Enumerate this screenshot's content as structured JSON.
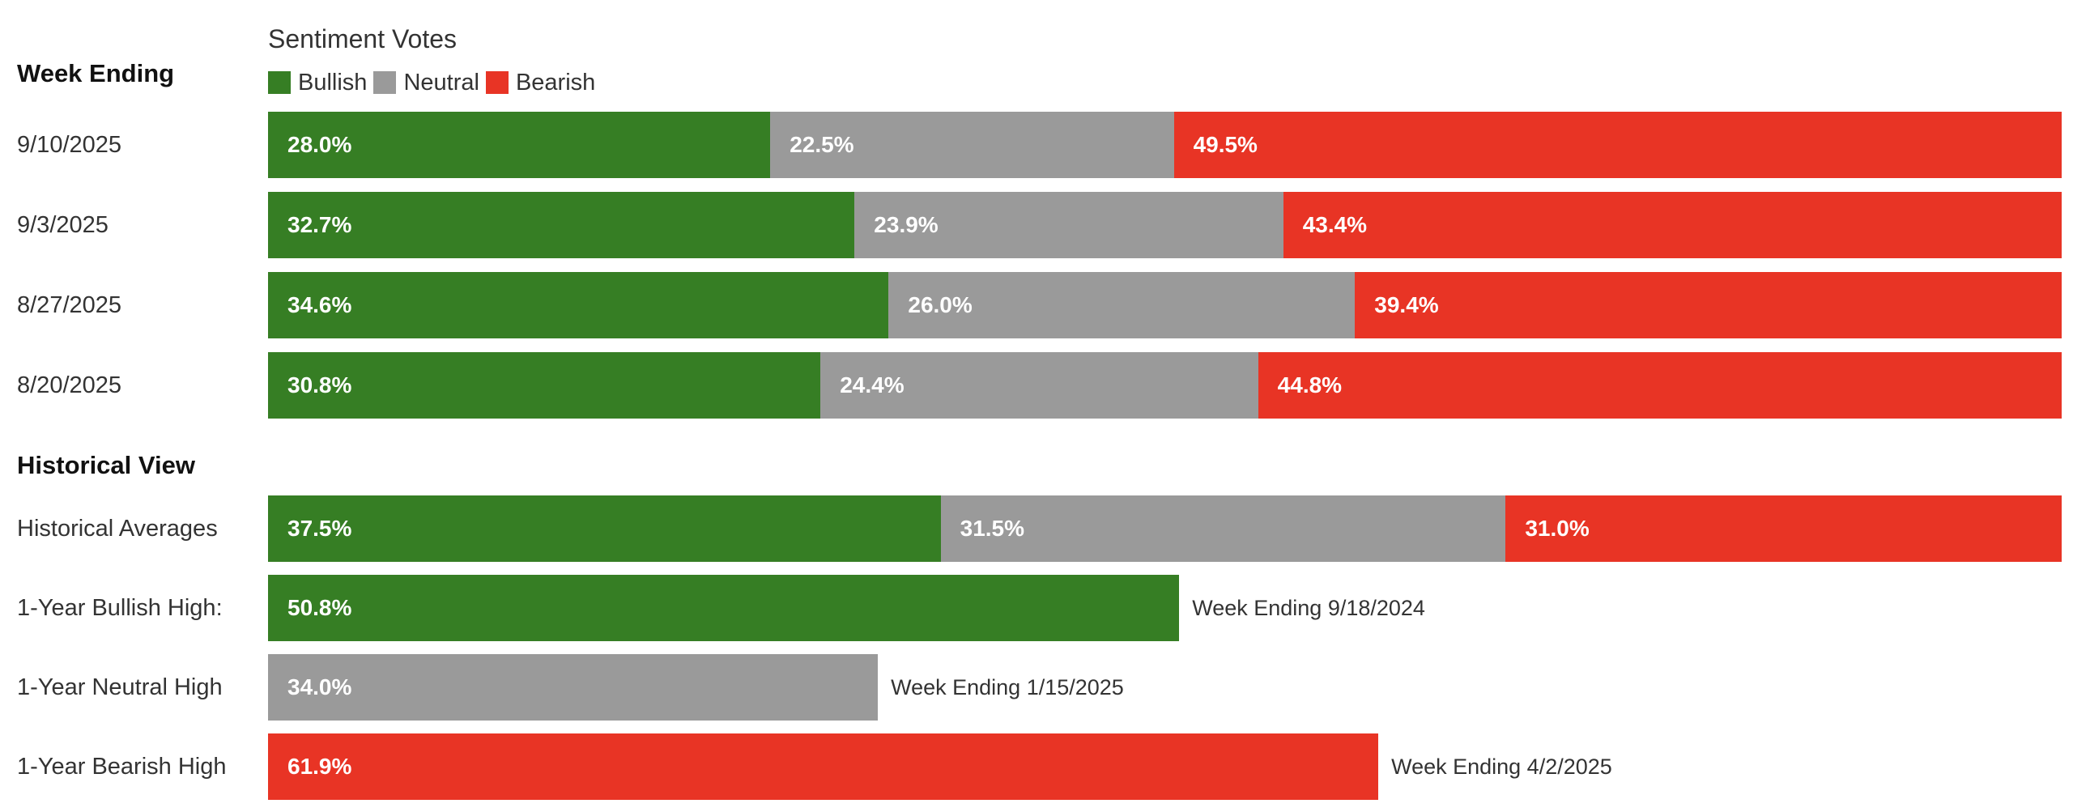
{
  "colors": {
    "bullish": "#367e24",
    "neutral": "#9a9a9a",
    "bearish": "#e83425"
  },
  "legend": {
    "title": "Sentiment Votes",
    "items": [
      "Bullish",
      "Neutral",
      "Bearish"
    ]
  },
  "week_section": {
    "heading": "Week Ending"
  },
  "historical_section": {
    "heading": "Historical View"
  },
  "chart_data": {
    "type": "bar",
    "stacked": true,
    "orientation": "horizontal",
    "title": "Sentiment Votes",
    "legend_position": "top-left",
    "series_names": [
      "Bullish",
      "Neutral",
      "Bearish"
    ],
    "weekly": [
      {
        "label": "9/10/2025",
        "values": [
          28.0,
          22.5,
          49.5
        ],
        "labels": [
          "28.0%",
          "22.5%",
          "49.5%"
        ]
      },
      {
        "label": "9/3/2025",
        "values": [
          32.7,
          23.9,
          43.4
        ],
        "labels": [
          "32.7%",
          "23.9%",
          "43.4%"
        ]
      },
      {
        "label": "8/27/2025",
        "values": [
          34.6,
          26.0,
          39.4
        ],
        "labels": [
          "34.6%",
          "26.0%",
          "39.4%"
        ]
      },
      {
        "label": "8/20/2025",
        "values": [
          30.8,
          24.4,
          44.8
        ],
        "labels": [
          "30.8%",
          "24.4%",
          "44.8%"
        ]
      }
    ],
    "historical_averages": {
      "label": "Historical Averages",
      "values": [
        37.5,
        31.5,
        31.0
      ],
      "labels": [
        "37.5%",
        "31.5%",
        "31.0%"
      ]
    },
    "one_year_highs": [
      {
        "label": "1-Year Bullish High:",
        "series": "Bullish",
        "value": 50.8,
        "value_label": "50.8%",
        "note": "Week Ending 9/18/2024"
      },
      {
        "label": "1-Year Neutral High",
        "series": "Neutral",
        "value": 34.0,
        "value_label": "34.0%",
        "note": "Week Ending 1/15/2025"
      },
      {
        "label": "1-Year Bearish High",
        "series": "Bearish",
        "value": 61.9,
        "value_label": "61.9%",
        "note": "Week Ending 4/2/2025"
      }
    ],
    "xlim": [
      0,
      100
    ]
  }
}
